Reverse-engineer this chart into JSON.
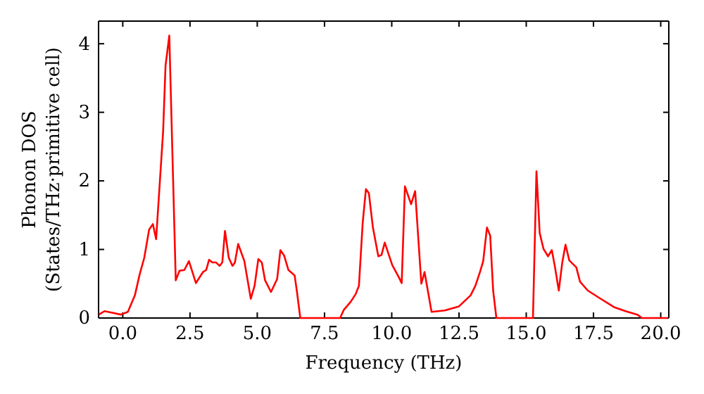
{
  "chart_data": {
    "type": "line",
    "xlabel": "Frequency (THz)",
    "ylabel": "Phonon DOS\n(States/THz·primitive cell)",
    "xlim": [
      -0.9,
      20.3
    ],
    "ylim": [
      0,
      4.33
    ],
    "xticks": [
      {
        "value": 0,
        "label": "0.0"
      },
      {
        "value": 2.5,
        "label": "2.5"
      },
      {
        "value": 5,
        "label": "5.0"
      },
      {
        "value": 7.5,
        "label": "7.5"
      },
      {
        "value": 10,
        "label": "10.0"
      },
      {
        "value": 12.5,
        "label": "12.5"
      },
      {
        "value": 15,
        "label": "15.0"
      },
      {
        "value": 17.5,
        "label": "17.5"
      },
      {
        "value": 20,
        "label": "20.0"
      }
    ],
    "yticks": [
      0,
      1,
      2,
      3,
      4
    ],
    "grid": false,
    "marker": "none",
    "line_style": "solid",
    "x": [
      -0.89,
      -0.68,
      -0.42,
      -0.07,
      0.19,
      0.45,
      0.63,
      0.8,
      0.98,
      1.12,
      1.24,
      1.5,
      1.59,
      1.73,
      1.97,
      2.11,
      2.29,
      2.46,
      2.72,
      2.98,
      3.1,
      3.21,
      3.33,
      3.47,
      3.6,
      3.7,
      3.8,
      3.94,
      4.08,
      4.17,
      4.29,
      4.52,
      4.76,
      4.9,
      5.04,
      5.17,
      5.29,
      5.51,
      5.74,
      5.86,
      6.0,
      6.16,
      6.39,
      6.47,
      6.6,
      8.08,
      8.22,
      8.48,
      8.66,
      8.78,
      8.92,
      9.04,
      9.15,
      9.3,
      9.5,
      9.62,
      9.74,
      10.02,
      10.23,
      10.37,
      10.49,
      10.72,
      10.87,
      11.1,
      11.22,
      11.48,
      11.97,
      12.5,
      12.93,
      13.11,
      13.28,
      13.4,
      13.54,
      13.66,
      13.77,
      13.89,
      15.25,
      15.38,
      15.5,
      15.64,
      15.81,
      15.95,
      16.07,
      16.21,
      16.34,
      16.46,
      16.6,
      16.86,
      17.0,
      17.29,
      17.73,
      18.26,
      18.69,
      19.13,
      19.3,
      20.26
    ],
    "series": [
      {
        "color": "#ff0000",
        "values": [
          0.05,
          0.1,
          0.08,
          0.05,
          0.09,
          0.33,
          0.64,
          0.88,
          1.29,
          1.37,
          1.15,
          2.72,
          3.68,
          4.12,
          0.55,
          0.69,
          0.7,
          0.83,
          0.51,
          0.67,
          0.7,
          0.85,
          0.81,
          0.81,
          0.76,
          0.81,
          1.27,
          0.88,
          0.76,
          0.81,
          1.08,
          0.83,
          0.28,
          0.47,
          0.86,
          0.81,
          0.55,
          0.38,
          0.57,
          0.99,
          0.91,
          0.7,
          0.62,
          0.4,
          0,
          0,
          0.12,
          0.24,
          0.35,
          0.47,
          1.39,
          1.88,
          1.82,
          1.32,
          0.9,
          0.92,
          1.1,
          0.77,
          0.62,
          0.51,
          1.92,
          1.66,
          1.85,
          0.5,
          0.67,
          0.09,
          0.11,
          0.17,
          0.33,
          0.47,
          0.67,
          0.83,
          1.32,
          1.2,
          0.4,
          0,
          0,
          2.14,
          1.24,
          1.01,
          0.9,
          0.99,
          0.74,
          0.4,
          0.81,
          1.07,
          0.84,
          0.74,
          0.53,
          0.4,
          0.29,
          0.16,
          0.1,
          0.05,
          0,
          0
        ]
      }
    ]
  }
}
